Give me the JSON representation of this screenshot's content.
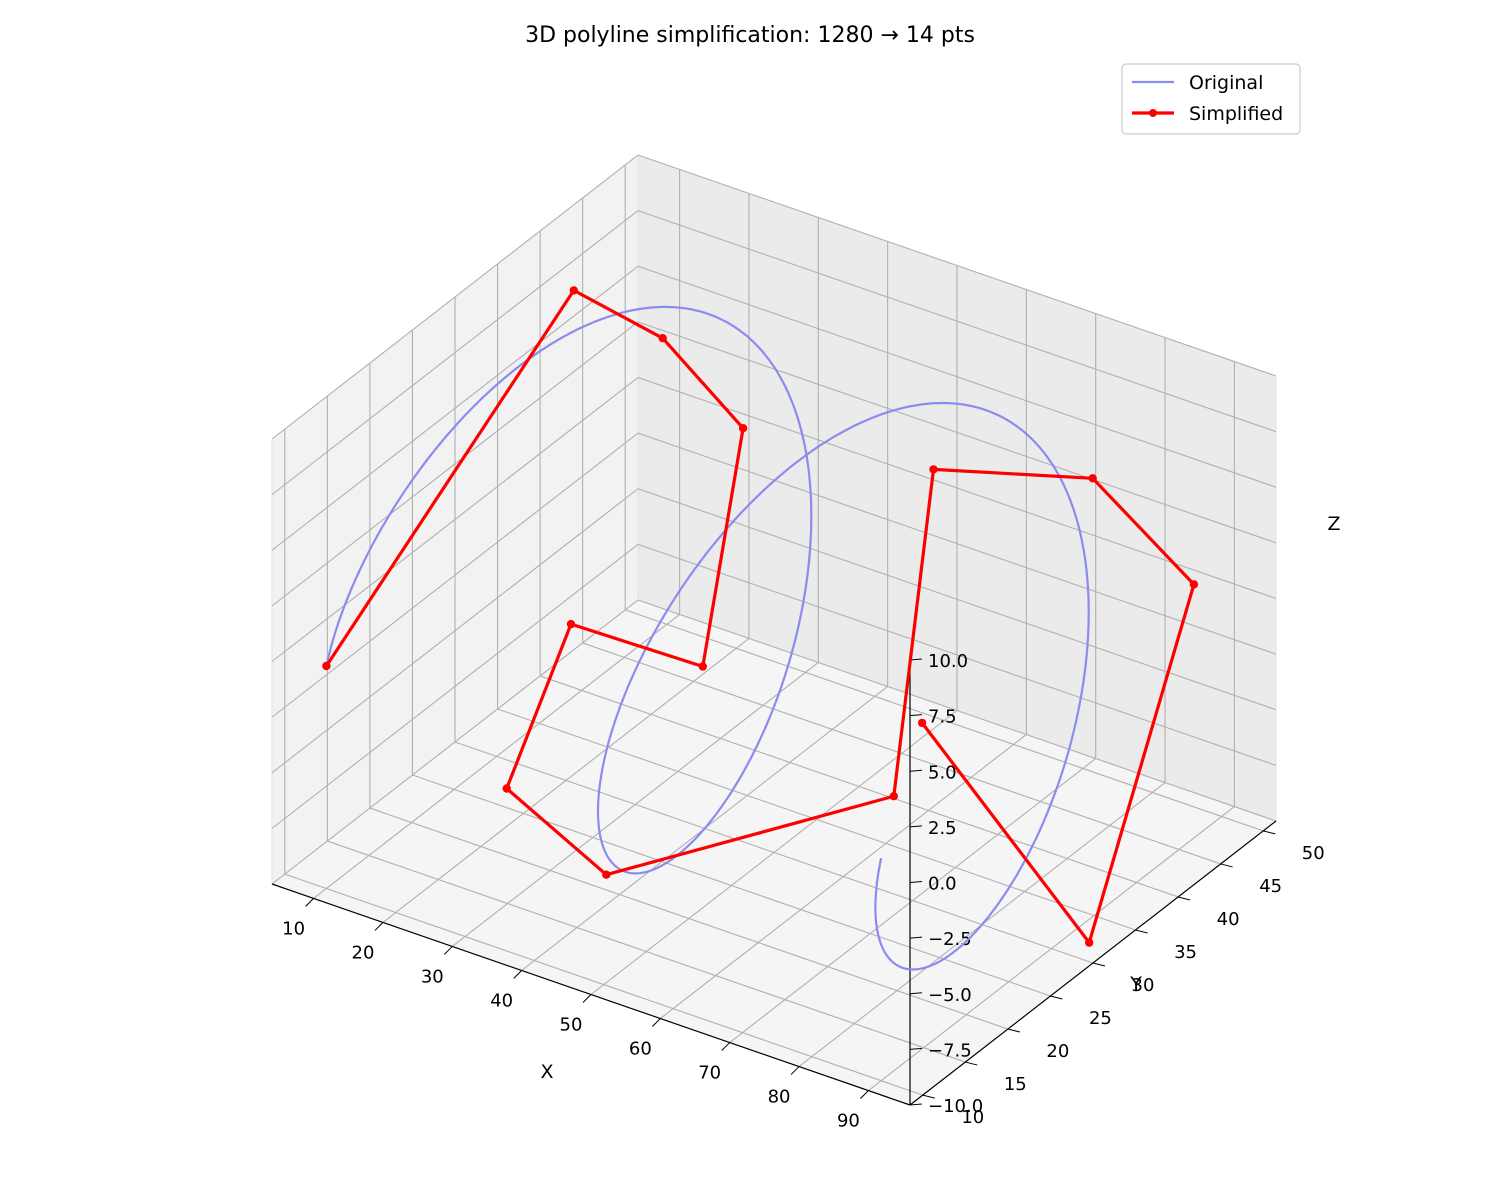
{
  "chart_data": {
    "type": "line3d",
    "title": "3D polyline simplification: 1280 → 14 pts",
    "xlabel": "X",
    "ylabel": "Y",
    "zlabel": "Z",
    "xlim": [
      4,
      96
    ],
    "ylim": [
      8.5,
      51.5
    ],
    "zlim": [
      -10,
      10
    ],
    "xticks": [
      10,
      20,
      30,
      40,
      50,
      60,
      70,
      80,
      90
    ],
    "yticks": [
      10,
      15,
      20,
      25,
      30,
      35,
      40,
      45,
      50
    ],
    "zticks": [
      -10.0,
      -7.5,
      -5.0,
      -2.5,
      0.0,
      2.5,
      5.0,
      7.5,
      10.0
    ],
    "xtick_labels": [
      "10",
      "20",
      "30",
      "40",
      "50",
      "60",
      "70",
      "80",
      "90"
    ],
    "ytick_labels": [
      "10",
      "15",
      "20",
      "25",
      "30",
      "35",
      "40",
      "45",
      "50"
    ],
    "ztick_labels": [
      "−10.0",
      "−7.5",
      "−5.0",
      "−2.5",
      "0.0",
      "2.5",
      "5.0",
      "7.5",
      "10.0"
    ],
    "grid": true,
    "legend_position": "top-right",
    "series": [
      {
        "name": "Original",
        "color": "#8b8bf0",
        "style": "line",
        "num_points": 1280,
        "shape": "helix: z = 10·sin(t), y = 30 − 20·cos(t), x increasing from 10 to 90, two full turns"
      },
      {
        "name": "Simplified",
        "color": "#ff0000",
        "style": "line+markers",
        "num_points": 14,
        "points": [
          {
            "x": 10.0,
            "y": 10.0,
            "z": 0.0
          },
          {
            "x": 15.0,
            "y": 35.0,
            "z": 10.0
          },
          {
            "x": 18.0,
            "y": 43.0,
            "z": 5.8
          },
          {
            "x": 21.0,
            "y": 50.0,
            "z": 0.0
          },
          {
            "x": 25.0,
            "y": 42.0,
            "z": -7.9
          },
          {
            "x": 33.0,
            "y": 20.0,
            "z": 1.4
          },
          {
            "x": 36.0,
            "y": 10.0,
            "z": -2.7
          },
          {
            "x": 43.0,
            "y": 16.0,
            "z": -7.6
          },
          {
            "x": 55.0,
            "y": 40.0,
            "z": -9.9
          },
          {
            "x": 73.0,
            "y": 30.0,
            "z": 9.7
          },
          {
            "x": 80.0,
            "y": 43.0,
            "z": 6.2
          },
          {
            "x": 86.0,
            "y": 50.0,
            "z": 0.0
          },
          {
            "x": 93.0,
            "y": 32.0,
            "z": -10.0
          },
          {
            "x": 91.0,
            "y": 14.0,
            "z": 5.0
          }
        ]
      }
    ]
  }
}
